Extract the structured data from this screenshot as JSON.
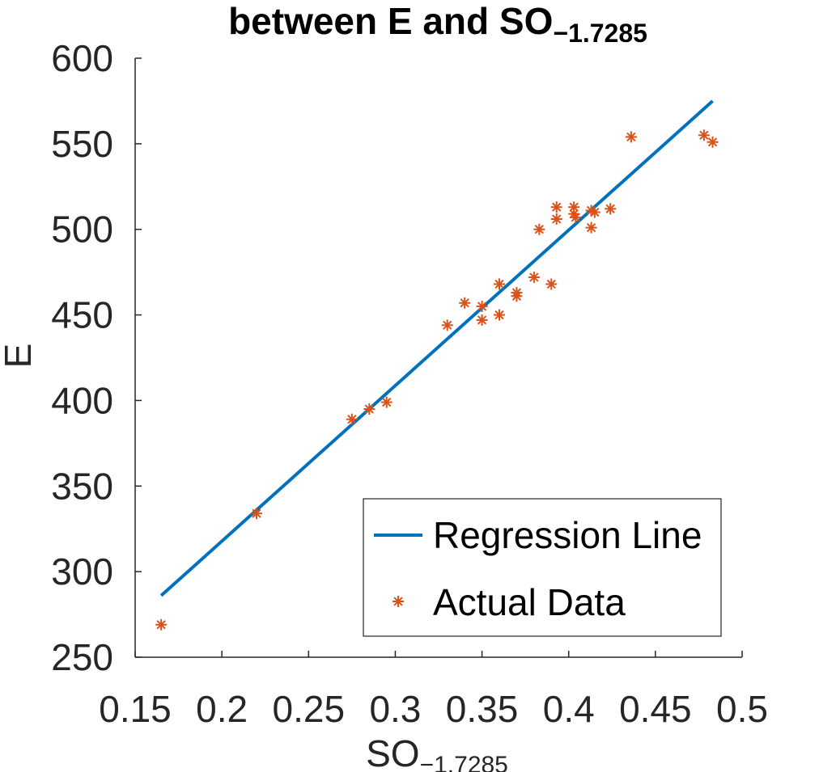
{
  "chart_data": {
    "type": "scatter",
    "title": {
      "main": "between E and SO",
      "subscript": "−1.7285"
    },
    "xlabel": {
      "main": "SO",
      "subscript": "−1.7285"
    },
    "ylabel": "E",
    "xlim": [
      0.15,
      0.5
    ],
    "ylim": [
      250,
      600
    ],
    "xticks": [
      "0.15",
      "0.2",
      "0.25",
      "0.3",
      "0.35",
      "0.4",
      "0.45",
      "0.5"
    ],
    "yticks": [
      "250",
      "300",
      "350",
      "400",
      "450",
      "500",
      "550",
      "600"
    ],
    "grid": false,
    "legend_position": "bottom-right",
    "series": [
      {
        "name": "Regression Line",
        "kind": "line",
        "color": "#0072BD",
        "points": [
          [
            0.165,
            286
          ],
          [
            0.483,
            575
          ]
        ]
      },
      {
        "name": "Actual Data",
        "kind": "scatter",
        "marker": "asterisk",
        "color": "#D95319",
        "points": [
          [
            0.165,
            269
          ],
          [
            0.22,
            334
          ],
          [
            0.275,
            389
          ],
          [
            0.285,
            395
          ],
          [
            0.295,
            399
          ],
          [
            0.33,
            444
          ],
          [
            0.34,
            457
          ],
          [
            0.35,
            455
          ],
          [
            0.35,
            447
          ],
          [
            0.36,
            468
          ],
          [
            0.36,
            450
          ],
          [
            0.37,
            463
          ],
          [
            0.37,
            461
          ],
          [
            0.38,
            472
          ],
          [
            0.383,
            500
          ],
          [
            0.39,
            468
          ],
          [
            0.393,
            513
          ],
          [
            0.393,
            506
          ],
          [
            0.403,
            513
          ],
          [
            0.403,
            509
          ],
          [
            0.404,
            507
          ],
          [
            0.413,
            511
          ],
          [
            0.413,
            501
          ],
          [
            0.415,
            510
          ],
          [
            0.424,
            512
          ],
          [
            0.436,
            554
          ],
          [
            0.478,
            555
          ],
          [
            0.483,
            551
          ]
        ]
      }
    ]
  }
}
